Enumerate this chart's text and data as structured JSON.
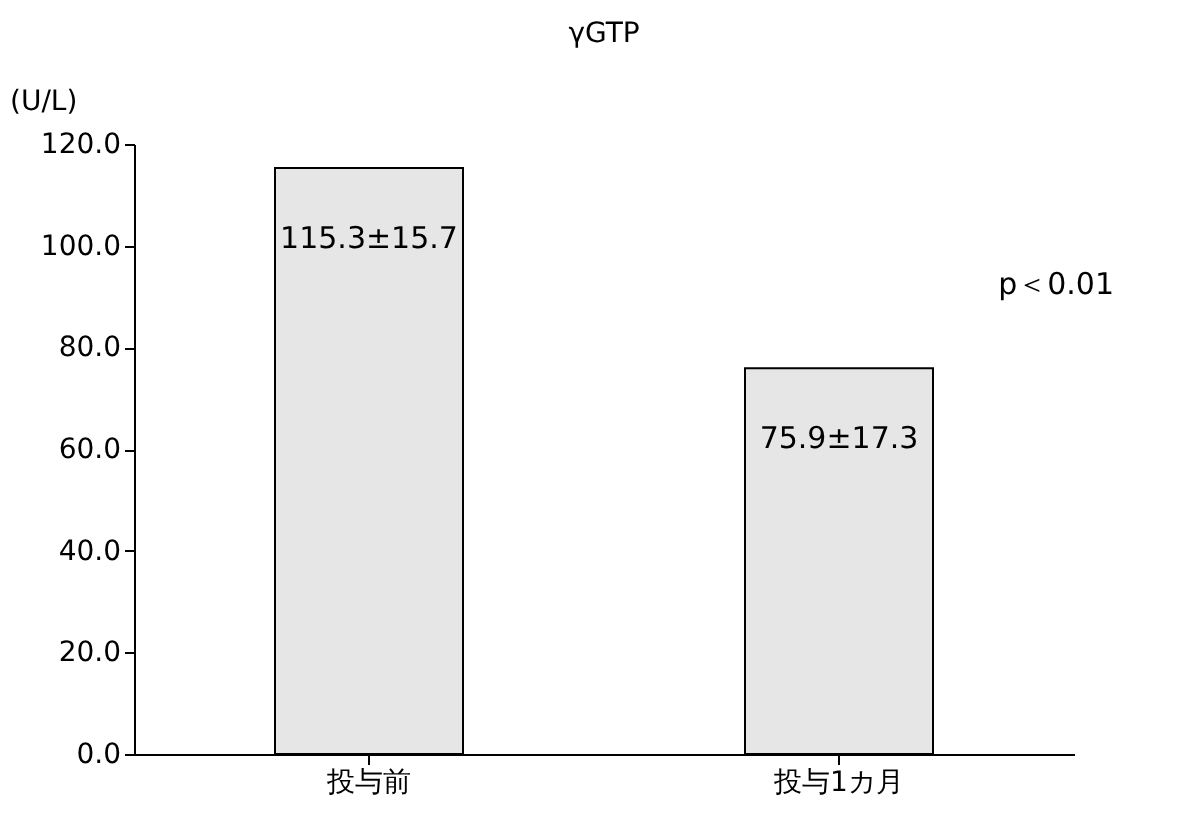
{
  "chart_data": {
    "type": "bar",
    "title": "γGTP",
    "ylabel": "(U/L)",
    "categories": [
      "投与前",
      "投与1カ月"
    ],
    "values": [
      115.3,
      75.9
    ],
    "value_labels": [
      "115.3±15.7",
      "75.9±17.3"
    ],
    "color": "#e6e6e6",
    "ylim": [
      0,
      120
    ],
    "yticks": [
      {
        "value": 0,
        "label": "0.0"
      },
      {
        "value": 20,
        "label": "20.0"
      },
      {
        "value": 40,
        "label": "40.0"
      },
      {
        "value": 60,
        "label": "60.0"
      },
      {
        "value": 80,
        "label": "80.0"
      },
      {
        "value": 100,
        "label": "100.0"
      },
      {
        "value": 120,
        "label": "120.0"
      }
    ],
    "annotations": [
      "p＜0.01"
    ],
    "grid": false
  }
}
